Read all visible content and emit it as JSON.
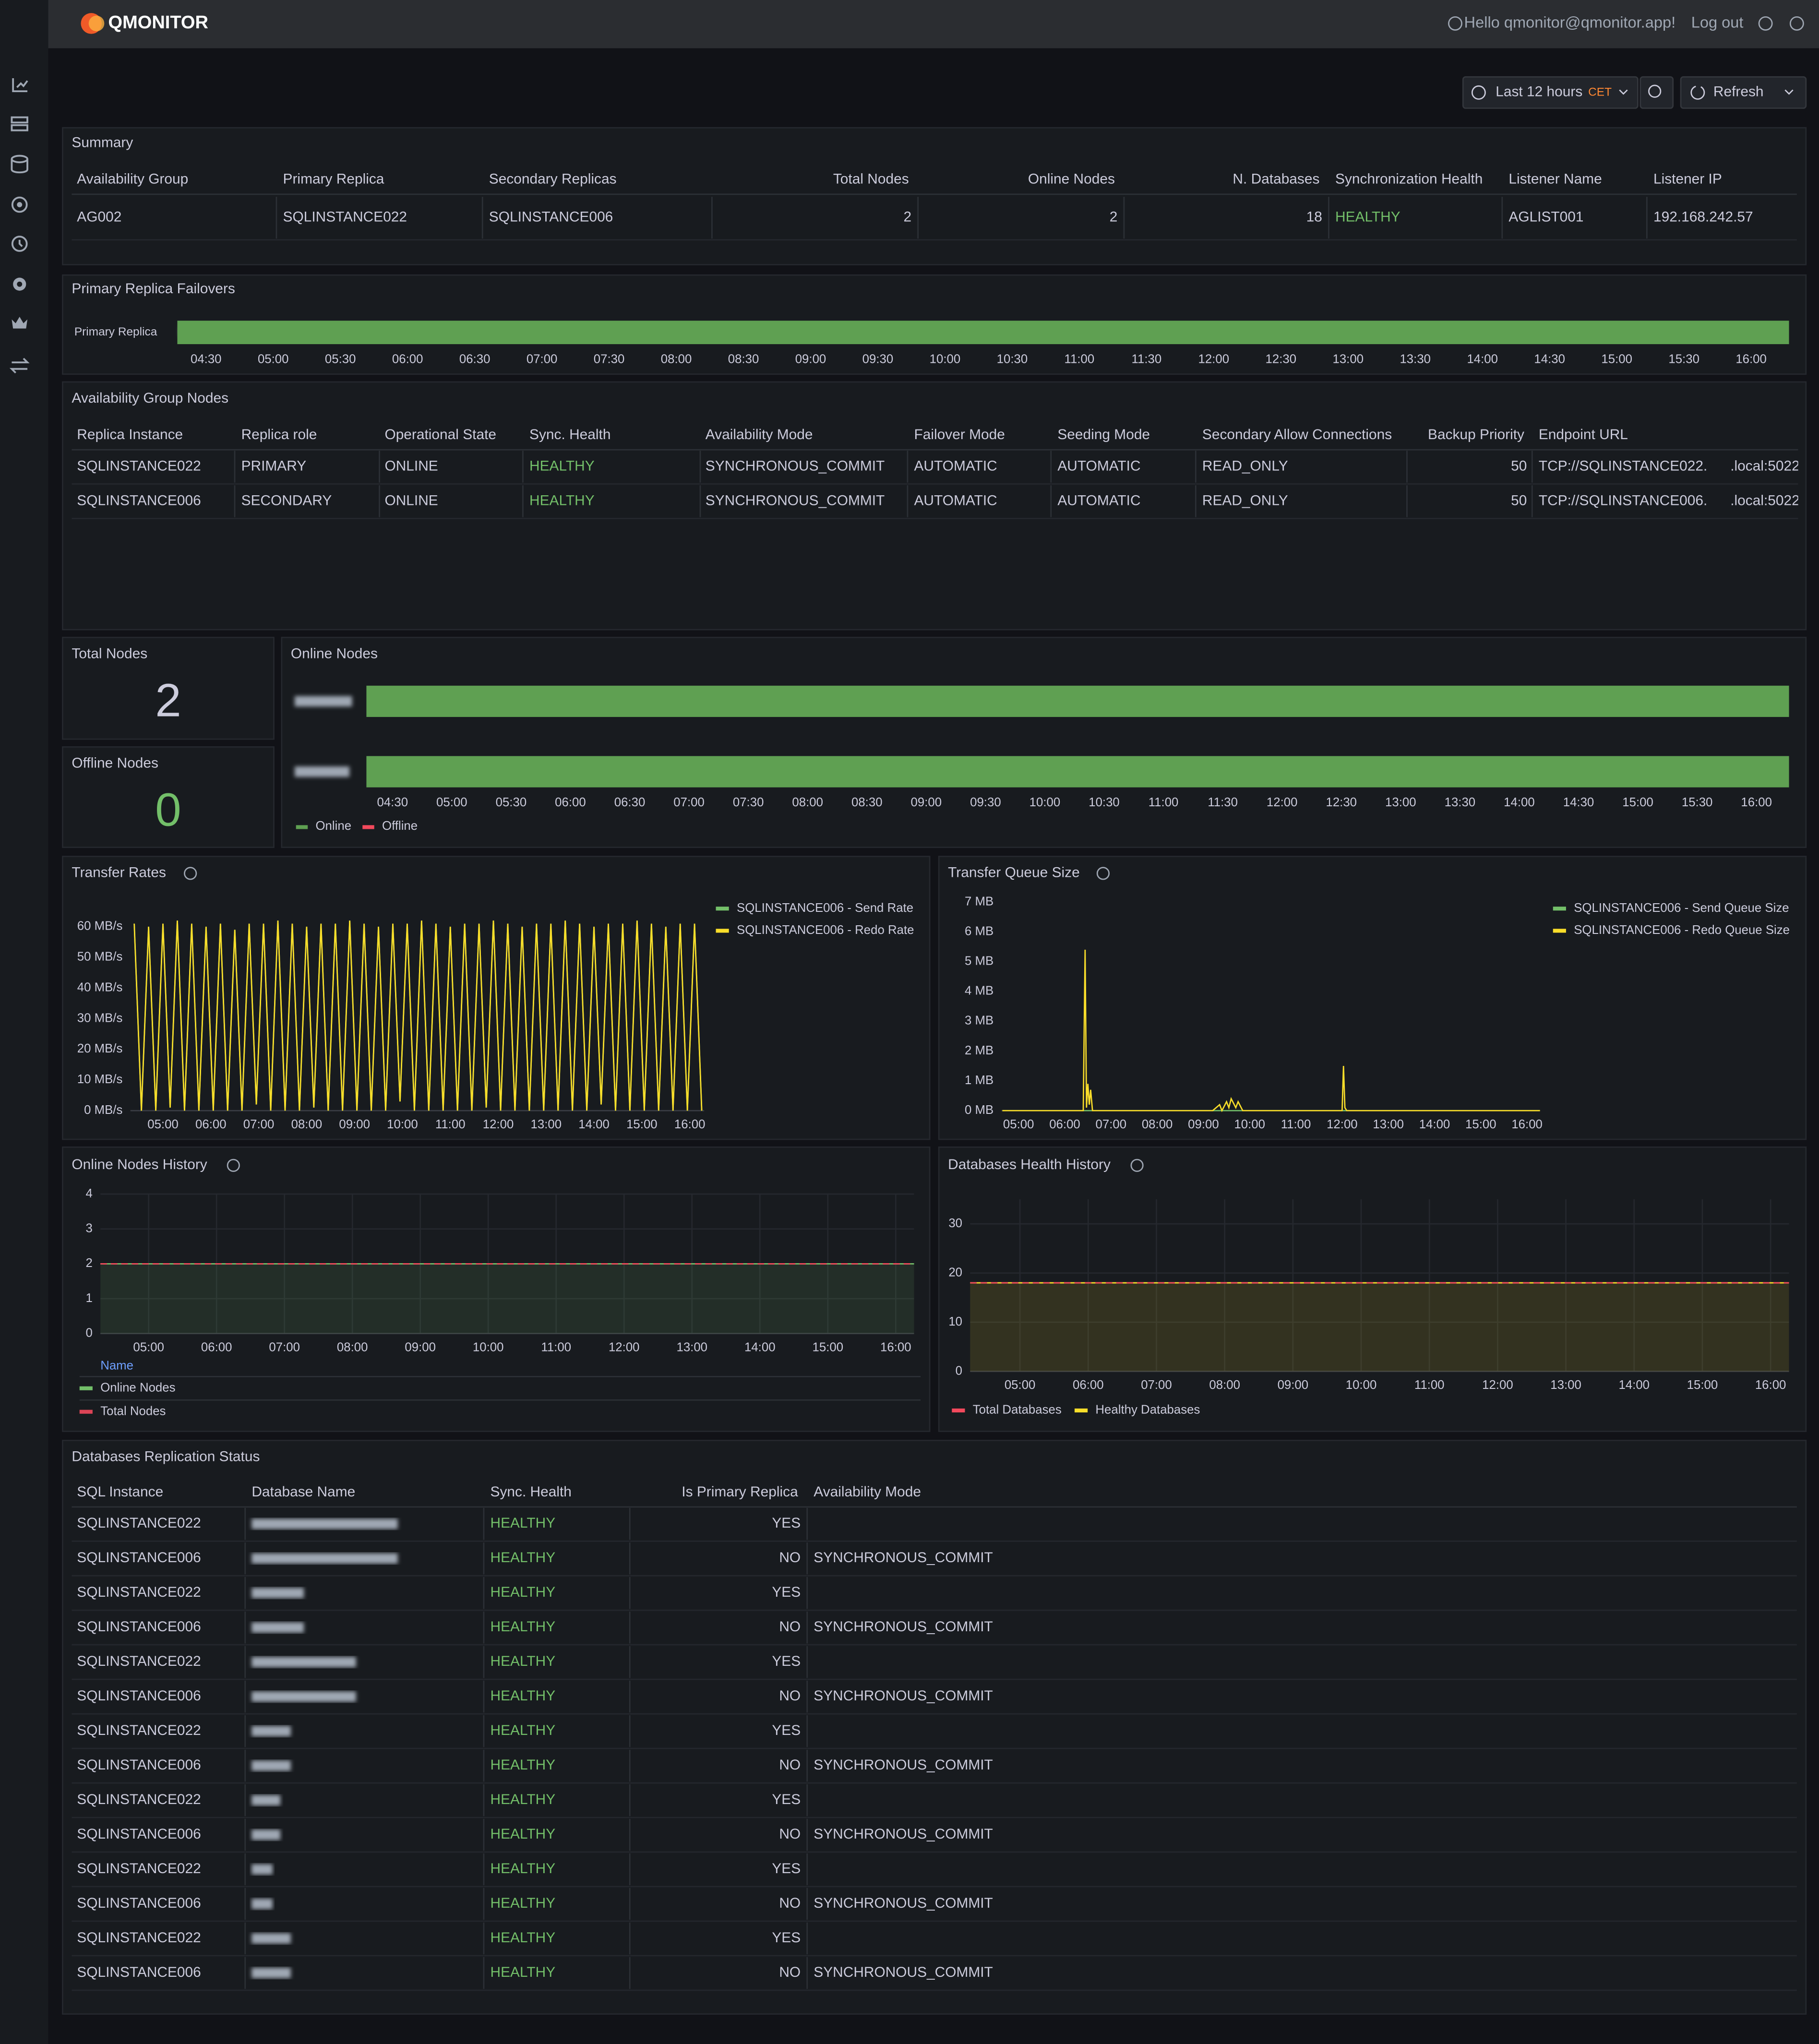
{
  "header": {
    "brand": "QMONITOR",
    "greeting": "Hello qmonitor@qmonitor.app!",
    "logout": "Log out"
  },
  "toolbar": {
    "time_range": "Last 12 hours",
    "timezone": "CET",
    "refresh": "Refresh"
  },
  "summary": {
    "title": "Summary",
    "columns": [
      "Availability Group",
      "Primary Replica",
      "Secondary Replicas",
      "Total Nodes",
      "Online Nodes",
      "N. Databases",
      "Synchronization Health",
      "Listener Name",
      "Listener IP"
    ],
    "rows": [
      [
        "AG002",
        "SQLINSTANCE022",
        "SQLINSTANCE006",
        2,
        2,
        18,
        "HEALTHY",
        "AGLIST001",
        "192.168.242.57"
      ]
    ]
  },
  "failovers": {
    "title": "Primary Replica Failovers",
    "row_label": "Primary Replica",
    "color": "#5fa052",
    "x_labels": [
      "04:30",
      "05:00",
      "05:30",
      "06:00",
      "06:30",
      "07:00",
      "07:30",
      "08:00",
      "08:30",
      "09:00",
      "09:30",
      "10:00",
      "10:30",
      "11:00",
      "11:30",
      "12:00",
      "12:30",
      "13:00",
      "13:30",
      "14:00",
      "14:30",
      "15:00",
      "15:30",
      "16:00"
    ]
  },
  "nodes_table": {
    "title": "Availability Group Nodes",
    "columns": [
      "Replica Instance",
      "Replica role",
      "Operational State",
      "Sync. Health",
      "Availability Mode",
      "Failover Mode",
      "Seeding Mode",
      "Secondary Allow Connections",
      "Backup Priority",
      "Endpoint URL"
    ],
    "rows": [
      [
        "SQLINSTANCE022",
        "PRIMARY",
        "ONLINE",
        "HEALTHY",
        "SYNCHRONOUS_COMMIT",
        "AUTOMATIC",
        "AUTOMATIC",
        "READ_ONLY",
        50,
        [
          "TCP://SQLINSTANCE022.",
          ".local:5022"
        ]
      ],
      [
        "SQLINSTANCE006",
        "SECONDARY",
        "ONLINE",
        "HEALTHY",
        "SYNCHRONOUS_COMMIT",
        "AUTOMATIC",
        "AUTOMATIC",
        "READ_ONLY",
        50,
        [
          "TCP://SQLINSTANCE006.",
          ".local:5022"
        ]
      ]
    ]
  },
  "total_nodes": {
    "title": "Total Nodes",
    "value": 2
  },
  "offline_nodes": {
    "title": "Offline Nodes",
    "value": 0
  },
  "online_nodes": {
    "title": "Online Nodes",
    "x_labels": [
      "04:30",
      "05:00",
      "05:30",
      "06:00",
      "06:30",
      "07:00",
      "07:30",
      "08:00",
      "08:30",
      "09:00",
      "09:30",
      "10:00",
      "10:30",
      "11:00",
      "11:30",
      "12:00",
      "12:30",
      "13:00",
      "13:30",
      "14:00",
      "14:30",
      "15:00",
      "15:30",
      "16:00"
    ],
    "legend": [
      {
        "name": "Online",
        "color": "#5fa052"
      },
      {
        "name": "Offline",
        "color": "#f2495c"
      }
    ]
  },
  "transfer_rates": {
    "type": "line",
    "title": "Transfer Rates",
    "legend": "top-right",
    "grid": false,
    "xlim": [
      4.32,
      16.3
    ],
    "ylim": [
      0,
      62.5
    ],
    "xticks": [
      {
        "value": 5,
        "label": "05:00"
      },
      {
        "value": 6,
        "label": "06:00"
      },
      {
        "value": 7,
        "label": "07:00"
      },
      {
        "value": 8,
        "label": "08:00"
      },
      {
        "value": 9,
        "label": "09:00"
      },
      {
        "value": 10,
        "label": "10:00"
      },
      {
        "value": 11,
        "label": "11:00"
      },
      {
        "value": 12,
        "label": "12:00"
      },
      {
        "value": 13,
        "label": "13:00"
      },
      {
        "value": 14,
        "label": "14:00"
      },
      {
        "value": 15,
        "label": "15:00"
      },
      {
        "value": 16,
        "label": "16:00"
      }
    ],
    "yticks": [
      {
        "value": 0,
        "label": "0 MB/s"
      },
      {
        "value": 10,
        "label": "10 MB/s"
      },
      {
        "value": 20,
        "label": "20 MB/s"
      },
      {
        "value": 30,
        "label": "30 MB/s"
      },
      {
        "value": 40,
        "label": "40 MB/s"
      },
      {
        "value": 50,
        "label": "50 MB/s"
      },
      {
        "value": 60,
        "label": "60 MB/s"
      }
    ],
    "x": [
      4.4,
      4.55,
      4.7,
      4.85,
      5,
      5.15,
      5.3,
      5.45,
      5.6,
      5.75,
      5.9,
      6.05,
      6.2,
      6.35,
      6.5,
      6.65,
      6.8,
      6.95,
      7.1,
      7.25,
      7.4,
      7.55,
      7.7,
      7.85,
      8,
      8.15,
      8.3,
      8.45,
      8.6,
      8.75,
      8.9,
      9.05,
      9.2,
      9.35,
      9.5,
      9.65,
      9.8,
      9.95,
      10.1,
      10.25,
      10.4,
      10.55,
      10.7,
      10.85,
      11,
      11.15,
      11.3,
      11.45,
      11.6,
      11.75,
      11.9,
      12.05,
      12.2,
      12.35,
      12.5,
      12.65,
      12.8,
      12.95,
      13.1,
      13.25,
      13.4,
      13.55,
      13.7,
      13.85,
      14,
      14.15,
      14.3,
      14.45,
      14.6,
      14.75,
      14.9,
      15.05,
      15.2,
      15.35,
      15.5,
      15.65,
      15.8,
      15.95,
      16.1,
      16.25
    ],
    "series": [
      {
        "name": "SQLINSTANCE006 - Send Rate",
        "color": "#73bf69",
        "values": [
          61,
          0,
          60,
          0,
          61,
          1,
          62,
          0,
          61,
          0,
          60,
          0,
          61,
          0,
          59,
          0,
          61,
          2,
          61,
          0,
          62,
          0,
          61,
          0,
          60,
          1,
          61,
          0,
          61,
          0,
          62,
          0,
          61,
          0,
          60,
          0,
          61,
          3,
          61,
          0,
          62,
          0,
          61,
          0,
          60,
          0,
          61,
          0,
          61,
          1,
          62,
          0,
          61,
          0,
          60,
          0,
          61,
          0,
          61,
          0,
          62,
          0,
          61,
          0,
          60,
          2,
          61,
          0,
          61,
          0,
          62,
          0,
          61,
          0,
          60,
          0,
          61,
          0,
          61,
          0
        ]
      },
      {
        "name": "SQLINSTANCE006 - Redo Rate",
        "color": "#fade2a",
        "values": [
          61,
          0,
          60,
          0,
          61,
          1,
          62,
          0,
          61,
          0,
          60,
          0,
          61,
          0,
          59,
          0,
          61,
          2,
          61,
          0,
          62,
          0,
          61,
          0,
          60,
          1,
          61,
          0,
          61,
          0,
          62,
          0,
          61,
          0,
          60,
          0,
          61,
          3,
          61,
          0,
          62,
          0,
          61,
          0,
          60,
          0,
          61,
          0,
          61,
          1,
          62,
          0,
          61,
          0,
          60,
          0,
          61,
          0,
          61,
          0,
          62,
          0,
          61,
          0,
          60,
          2,
          61,
          0,
          61,
          0,
          62,
          0,
          61,
          0,
          60,
          0,
          61,
          0,
          61,
          0
        ]
      }
    ]
  },
  "transfer_queue": {
    "type": "line",
    "title": "Transfer Queue Size",
    "legend": "top-right",
    "grid": false,
    "xlim": [
      4.63,
      16.28
    ],
    "ylim": [
      0,
      7
    ],
    "xticks": [
      {
        "value": 5,
        "label": "05:00"
      },
      {
        "value": 6,
        "label": "06:00"
      },
      {
        "value": 7,
        "label": "07:00"
      },
      {
        "value": 8,
        "label": "08:00"
      },
      {
        "value": 9,
        "label": "09:00"
      },
      {
        "value": 10,
        "label": "10:00"
      },
      {
        "value": 11,
        "label": "11:00"
      },
      {
        "value": 12,
        "label": "12:00"
      },
      {
        "value": 13,
        "label": "13:00"
      },
      {
        "value": 14,
        "label": "14:00"
      },
      {
        "value": 15,
        "label": "15:00"
      },
      {
        "value": 16,
        "label": "16:00"
      }
    ],
    "yticks": [
      {
        "value": 0,
        "label": "0 MB"
      },
      {
        "value": 1,
        "label": "1 MB"
      },
      {
        "value": 2,
        "label": "2 MB"
      },
      {
        "value": 3,
        "label": "3 MB"
      },
      {
        "value": 4,
        "label": "4 MB"
      },
      {
        "value": 5,
        "label": "5 MB"
      },
      {
        "value": 6,
        "label": "6 MB"
      },
      {
        "value": 7,
        "label": "7 MB"
      }
    ],
    "x": [
      4.65,
      6.4,
      6.44,
      6.47,
      6.5,
      6.53,
      6.56,
      6.6,
      8.0,
      9.2,
      9.35,
      9.4,
      9.5,
      9.55,
      9.6,
      9.7,
      9.75,
      9.85,
      10.5,
      11.5,
      12.0,
      12.03,
      12.06,
      12.1,
      13.5,
      16.28
    ],
    "series": [
      {
        "name": "SQLINSTANCE006 - Send Queue Size",
        "color": "#73bf69",
        "values": [
          0,
          0,
          0,
          0,
          0,
          0,
          0,
          0,
          0,
          0,
          0,
          0,
          0,
          0,
          0,
          0,
          0,
          0,
          0,
          0,
          0,
          0,
          0,
          0,
          0,
          0
        ]
      },
      {
        "name": "SQLINSTANCE006 - Redo Queue Size",
        "color": "#fade2a",
        "values": [
          0,
          0,
          5.4,
          0.1,
          0.9,
          0.2,
          0.7,
          0,
          0,
          0,
          0.2,
          0,
          0.3,
          0.1,
          0.4,
          0.1,
          0.3,
          0,
          0,
          0,
          0,
          1.5,
          0.1,
          0,
          0,
          0
        ]
      }
    ]
  },
  "nodes_history": {
    "type": "line",
    "title": "Online Nodes History",
    "legend": "bottom",
    "legend_title": "Name",
    "grid": true,
    "xlim": [
      4.29,
      16.27
    ],
    "ylim": [
      0,
      4
    ],
    "xticks": [
      {
        "value": 5,
        "label": "05:00"
      },
      {
        "value": 6,
        "label": "06:00"
      },
      {
        "value": 7,
        "label": "07:00"
      },
      {
        "value": 8,
        "label": "08:00"
      },
      {
        "value": 9,
        "label": "09:00"
      },
      {
        "value": 10,
        "label": "10:00"
      },
      {
        "value": 11,
        "label": "11:00"
      },
      {
        "value": 12,
        "label": "12:00"
      },
      {
        "value": 13,
        "label": "13:00"
      },
      {
        "value": 14,
        "label": "14:00"
      },
      {
        "value": 15,
        "label": "15:00"
      },
      {
        "value": 16,
        "label": "16:00"
      }
    ],
    "yticks": [
      0,
      1,
      2,
      3,
      4
    ],
    "x": [
      4.29,
      16.27
    ],
    "series": [
      {
        "name": "Online Nodes",
        "color": "#73bf69",
        "fill": true,
        "values": [
          2,
          2
        ]
      },
      {
        "name": "Total Nodes",
        "color": "#f2495c",
        "dash": true,
        "values": [
          2,
          2
        ]
      }
    ]
  },
  "db_health": {
    "type": "line",
    "title": "Databases Health History",
    "legend": "bottom",
    "grid": true,
    "xlim": [
      4.27,
      16.27
    ],
    "ylim": [
      0,
      35
    ],
    "xticks": [
      {
        "value": 5,
        "label": "05:00"
      },
      {
        "value": 6,
        "label": "06:00"
      },
      {
        "value": 7,
        "label": "07:00"
      },
      {
        "value": 8,
        "label": "08:00"
      },
      {
        "value": 9,
        "label": "09:00"
      },
      {
        "value": 10,
        "label": "10:00"
      },
      {
        "value": 11,
        "label": "11:00"
      },
      {
        "value": 12,
        "label": "12:00"
      },
      {
        "value": 13,
        "label": "13:00"
      },
      {
        "value": 14,
        "label": "14:00"
      },
      {
        "value": 15,
        "label": "15:00"
      },
      {
        "value": 16,
        "label": "16:00"
      }
    ],
    "yticks": [
      0,
      10,
      20,
      30
    ],
    "x": [
      4.27,
      16.27
    ],
    "series": [
      {
        "name": "Total Databases",
        "color": "#f2495c",
        "dash": true,
        "values": [
          18,
          18
        ]
      },
      {
        "name": "Healthy Databases",
        "color": "#fade2a",
        "fill": true,
        "values": [
          18,
          18
        ]
      }
    ]
  },
  "replication": {
    "title": "Databases Replication Status",
    "columns": [
      "SQL Instance",
      "Database Name",
      "Sync. Health",
      "Is Primary Replica",
      "Availability Mode"
    ],
    "rows": [
      [
        "SQLINSTANCE022",
        null,
        "HEALTHY",
        "YES"
      ],
      [
        "SQLINSTANCE006",
        null,
        "HEALTHY",
        "NO",
        "SYNCHRONOUS_COMMIT"
      ],
      [
        "SQLINSTANCE022",
        null,
        "HEALTHY",
        "YES"
      ],
      [
        "SQLINSTANCE006",
        null,
        "HEALTHY",
        "NO",
        "SYNCHRONOUS_COMMIT"
      ],
      [
        "SQLINSTANCE022",
        null,
        "HEALTHY",
        "YES"
      ],
      [
        "SQLINSTANCE006",
        null,
        "HEALTHY",
        "NO",
        "SYNCHRONOUS_COMMIT"
      ],
      [
        "SQLINSTANCE022",
        null,
        "HEALTHY",
        "YES"
      ],
      [
        "SQLINSTANCE006",
        null,
        "HEALTHY",
        "NO",
        "SYNCHRONOUS_COMMIT"
      ],
      [
        "SQLINSTANCE022",
        null,
        "HEALTHY",
        "YES"
      ],
      [
        "SQLINSTANCE006",
        null,
        "HEALTHY",
        "NO",
        "SYNCHRONOUS_COMMIT"
      ],
      [
        "SQLINSTANCE022",
        null,
        "HEALTHY",
        "YES"
      ],
      [
        "SQLINSTANCE006",
        null,
        "HEALTHY",
        "NO",
        "SYNCHRONOUS_COMMIT"
      ],
      [
        "SQLINSTANCE022",
        null,
        "HEALTHY",
        "YES"
      ],
      [
        "SQLINSTANCE006",
        null,
        "HEALTHY",
        "NO",
        "SYNCHRONOUS_COMMIT"
      ]
    ]
  }
}
